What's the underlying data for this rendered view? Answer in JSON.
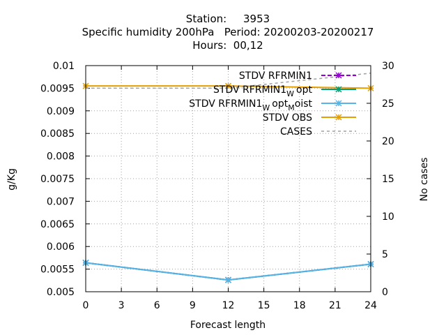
{
  "chart_data": {
    "type": "line",
    "title_lines": [
      "Station:     3953",
      "Specific humidity 200hPa   Period: 20200203-20200217",
      "Hours:  00,12"
    ],
    "xlabel": "Forecast length",
    "ylabel": "g/Kg",
    "y2label": "No cases",
    "xlim": [
      0,
      24
    ],
    "xticks": [
      0,
      3,
      6,
      9,
      12,
      15,
      18,
      21,
      24
    ],
    "ylim": [
      0.005,
      0.01
    ],
    "yticks": [
      "0.005",
      "0.0055",
      "0.006",
      "0.0065",
      "0.007",
      "0.0075",
      "0.008",
      "0.0085",
      "0.009",
      "0.0095",
      "0.01"
    ],
    "y2lim": [
      0,
      30
    ],
    "y2ticks": [
      0,
      5,
      10,
      15,
      20,
      25,
      30
    ],
    "grid": true,
    "legend_position": "top-right",
    "series": [
      {
        "label_main": "STDV RFRMIN1",
        "label_sub1": "",
        "label_tail1": "",
        "label_sub2": "",
        "label_tail2": "",
        "color": "#9400d3",
        "marker": "star",
        "dashed": true,
        "axis": "y",
        "x": [
          0,
          12,
          24
        ],
        "y": [
          0.00564,
          0.00526,
          0.00561
        ]
      },
      {
        "label_main": "STDV RFRMIN1",
        "label_sub1": "W",
        "label_tail1": "opt",
        "label_sub2": "",
        "label_tail2": "",
        "color": "#009e73",
        "marker": "star",
        "dashed": false,
        "axis": "y",
        "x": [
          0,
          12,
          24
        ],
        "y": [
          0.00564,
          0.00526,
          0.00561
        ]
      },
      {
        "label_main": "STDV RFRMIN1",
        "label_sub1": "W",
        "label_tail1": "opt",
        "label_sub2": "M",
        "label_tail2": "oist",
        "color": "#56b4e9",
        "marker": "star",
        "dashed": false,
        "axis": "y",
        "x": [
          0,
          12,
          24
        ],
        "y": [
          0.00564,
          0.00526,
          0.00561
        ]
      },
      {
        "label_main": "STDV OBS",
        "label_sub1": "",
        "label_tail1": "",
        "label_sub2": "",
        "label_tail2": "",
        "color": "#e69f00",
        "marker": "star",
        "dashed": false,
        "axis": "y",
        "x": [
          0,
          12,
          24
        ],
        "y": [
          0.00955,
          0.00955,
          0.0095
        ]
      },
      {
        "label_main": "CASES",
        "label_sub1": "",
        "label_tail1": "",
        "label_sub2": "",
        "label_tail2": "",
        "color": "#a0a0a0",
        "marker": "none",
        "dashed": true,
        "axis": "y2",
        "x": [
          0,
          12,
          24
        ],
        "y": [
          27,
          27,
          29
        ]
      }
    ]
  }
}
